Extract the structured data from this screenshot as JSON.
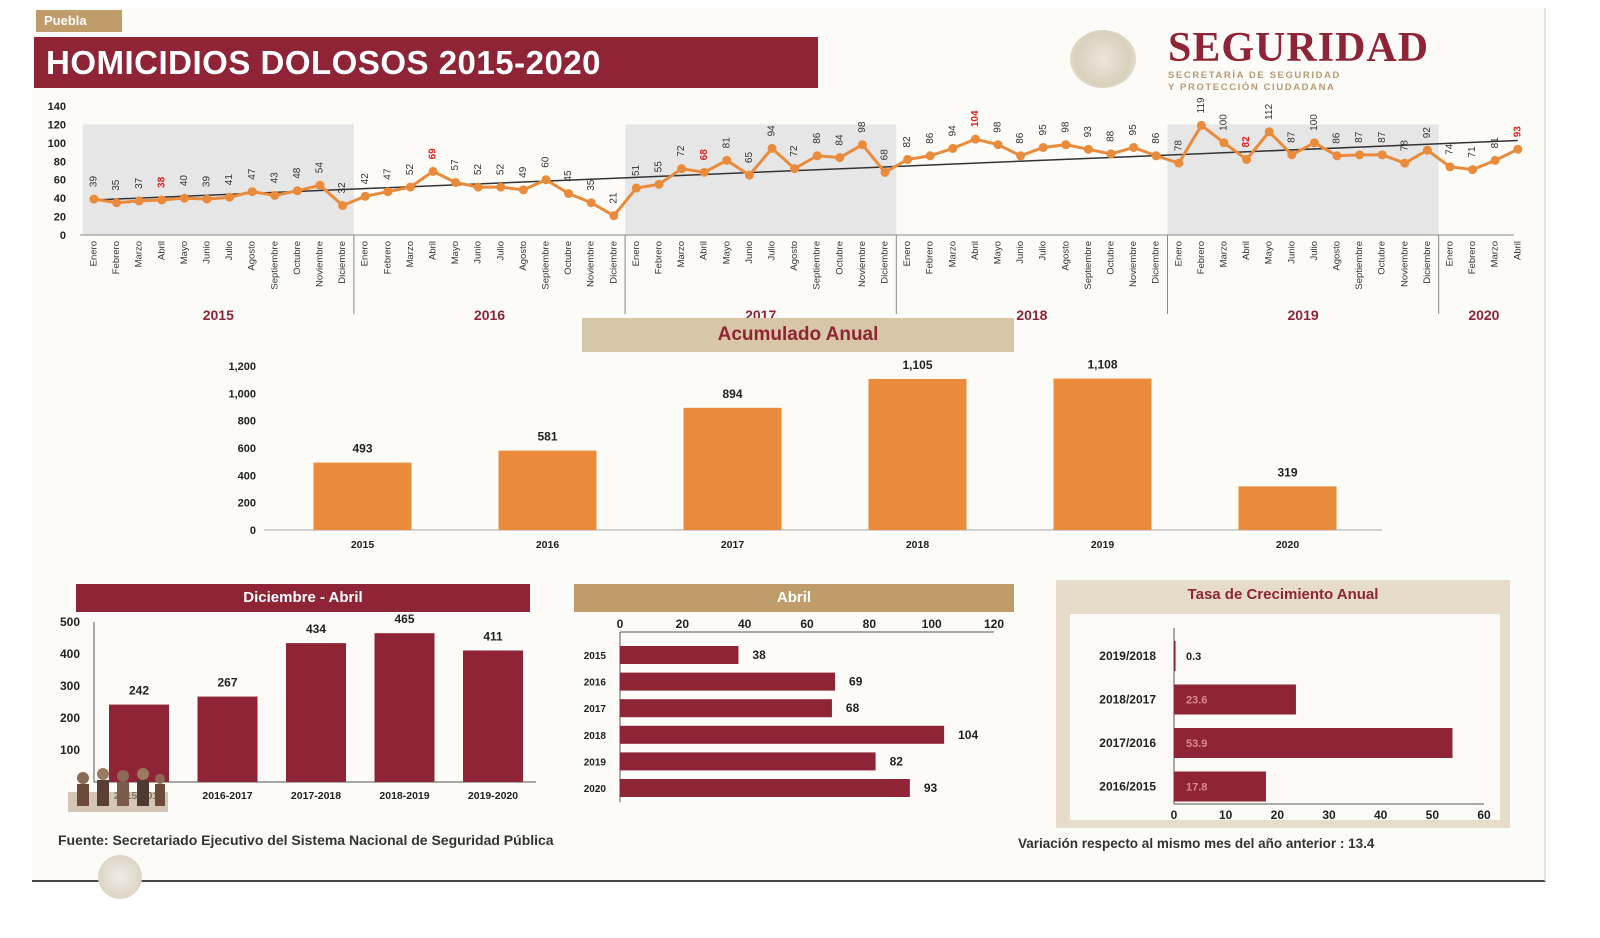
{
  "header": {
    "state_tag": "Puebla",
    "title": "HOMICIDIOS DOLOSOS 2015-2020",
    "brand": "SEGURIDAD",
    "brand_sub1": "SECRETARÍA DE SEGURIDAD",
    "brand_sub2": "Y PROTECCIÓN CIUDADANA"
  },
  "colors": {
    "maroon": "#8f2436",
    "orange": "#ea8b3b",
    "tan": "#d8c6a8",
    "gold": "#bf9c6a",
    "red_label": "#e02020"
  },
  "chart_data": [
    {
      "type": "line",
      "y_ticks": [
        0,
        20,
        40,
        60,
        80,
        100,
        120,
        140
      ],
      "ylim": [
        0,
        140
      ],
      "months": [
        "Enero",
        "Febrero",
        "Marzo",
        "Abril",
        "Mayo",
        "Junio",
        "Julio",
        "Agosto",
        "Septiembre",
        "Octubre",
        "Noviembre",
        "Diciembre"
      ],
      "years": [
        {
          "label": "2015",
          "values": [
            39,
            35,
            37,
            38,
            40,
            39,
            41,
            47,
            43,
            48,
            54,
            32
          ]
        },
        {
          "label": "2016",
          "values": [
            42,
            47,
            52,
            69,
            57,
            52,
            52,
            49,
            60,
            45,
            35,
            21
          ]
        },
        {
          "label": "2017",
          "values": [
            51,
            55,
            72,
            68,
            81,
            65,
            94,
            72,
            86,
            84,
            98,
            68
          ]
        },
        {
          "label": "2018",
          "values": [
            82,
            86,
            94,
            104,
            98,
            86,
            95,
            98,
            93,
            88,
            95,
            86
          ]
        },
        {
          "label": "2019",
          "values": [
            78,
            119,
            100,
            82,
            112,
            87,
            100,
            86,
            87,
            87,
            78,
            92
          ]
        },
        {
          "label": "2020",
          "values": [
            74,
            71,
            81,
            93
          ]
        }
      ],
      "highlight_month": "Abril",
      "trendline": true
    },
    {
      "type": "bar",
      "title": "Acumulado Anual",
      "categories": [
        "2015",
        "2016",
        "2017",
        "2018",
        "2019",
        "2020"
      ],
      "values": [
        493,
        581,
        894,
        1105,
        1108,
        319
      ],
      "value_labels": [
        "493",
        "581",
        "894",
        "1,105",
        "1,108",
        "319"
      ],
      "y_ticks": [
        "0",
        "200",
        "400",
        "600",
        "800",
        "1,000",
        "1,200"
      ],
      "ylim": [
        0,
        1200
      ]
    },
    {
      "type": "bar",
      "title": "Diciembre - Abril",
      "categories": [
        "2015-2016",
        "2016-2017",
        "2017-2018",
        "2018-2019",
        "2019-2020"
      ],
      "values": [
        242,
        267,
        434,
        465,
        411
      ],
      "y_ticks": [
        100,
        200,
        300,
        400,
        500
      ],
      "ylim": [
        0,
        500
      ]
    },
    {
      "type": "bar",
      "orientation": "horizontal",
      "title": "Abril",
      "categories": [
        "2015",
        "2016",
        "2017",
        "2018",
        "2019",
        "2020"
      ],
      "values": [
        38,
        69,
        68,
        104,
        82,
        93
      ],
      "x_ticks": [
        0,
        20,
        40,
        60,
        80,
        100,
        120
      ],
      "xlim": [
        0,
        120
      ]
    },
    {
      "type": "bar",
      "orientation": "horizontal",
      "title": "Tasa de Crecimiento Anual",
      "categories": [
        "2019/2018",
        "2018/2017",
        "2017/2016",
        "2016/2015"
      ],
      "values": [
        0.3,
        23.6,
        53.9,
        17.8
      ],
      "value_labels": [
        "0.3",
        "23.6",
        "53.9",
        "17.8"
      ],
      "x_ticks": [
        0,
        10,
        20,
        30,
        40,
        50,
        60
      ],
      "xlim": [
        0,
        60
      ]
    }
  ],
  "footer": {
    "source": "Fuente: Secretariado Ejecutivo del Sistema Nacional de Seguridad Pública",
    "variation": "Variación respecto al mismo mes del año anterior : 13.4"
  }
}
